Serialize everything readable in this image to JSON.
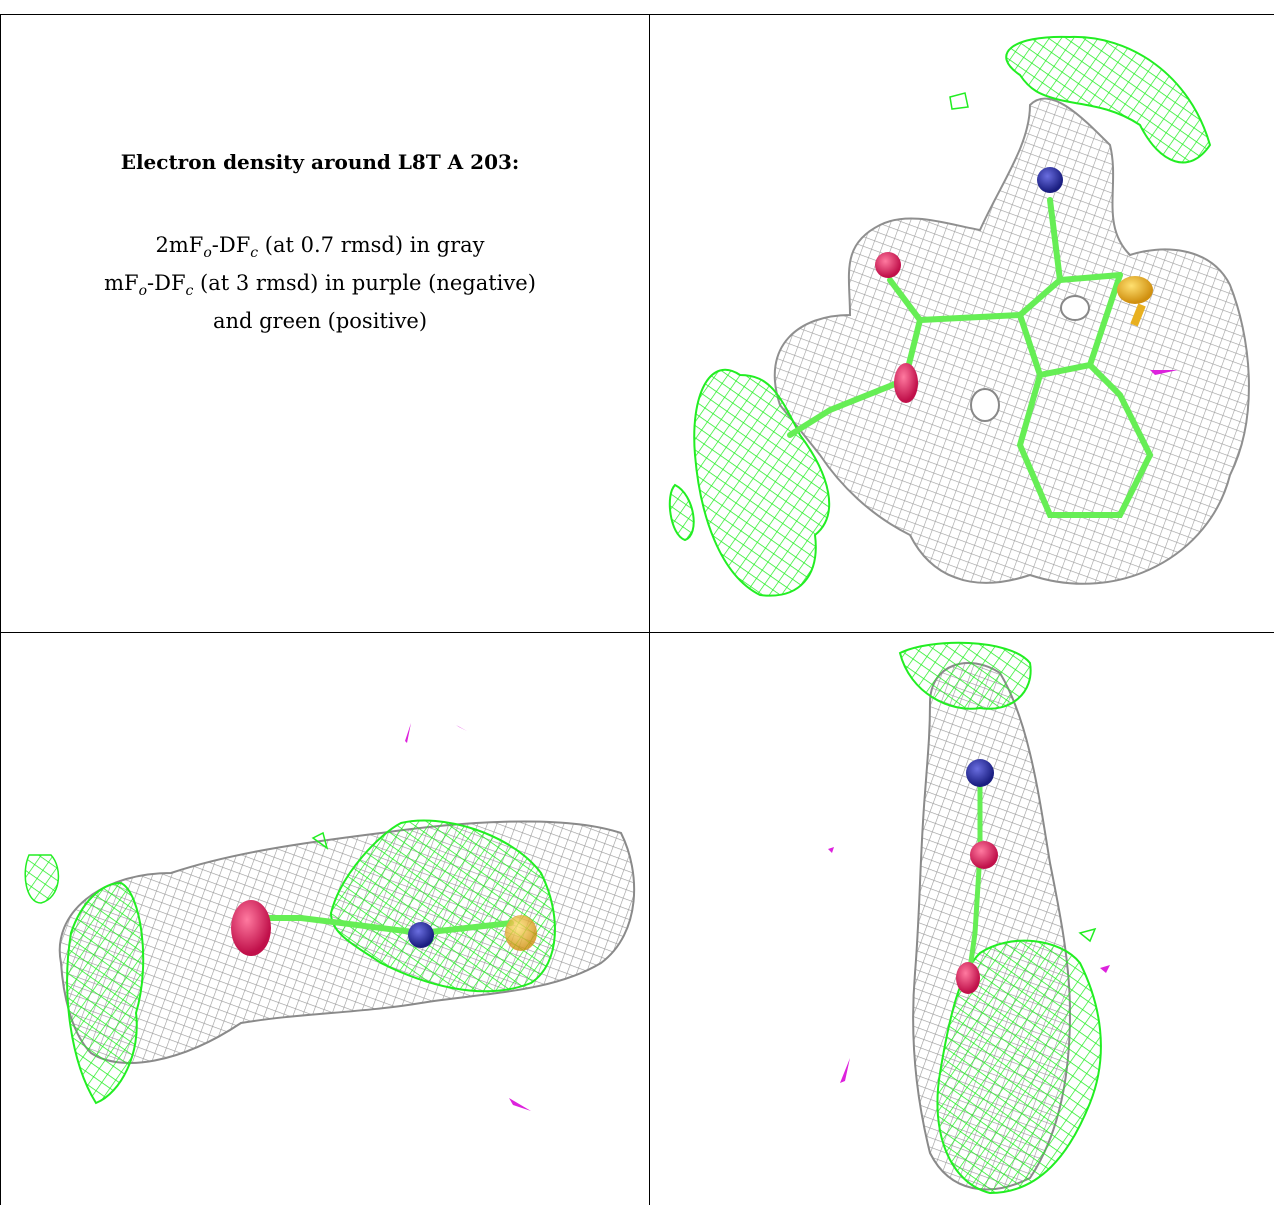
{
  "caption": {
    "title": "Electron density around L8T A 203:",
    "line1_prefix": "2mF",
    "line1_sub_o": "o",
    "line1_mid": "-DF",
    "line1_sub_c": "c",
    "line1_suffix": " (at 0.7 rmsd) in gray",
    "line2_prefix": "mF",
    "line2_sub_o": "o",
    "line2_mid": "-DF",
    "line2_sub_c": "c",
    "line2_suffix": " (at 3 rmsd) in purple (negative)",
    "line3": "and green (positive)"
  },
  "colors": {
    "gray_mesh": "#9a9a9a",
    "green_mesh": "#22ee22",
    "purple_mesh": "#dd22dd",
    "oxygen": "#e8205a",
    "nitrogen": "#2b2fa0",
    "sulfur": "#e8b020",
    "bond": "#66ee55"
  },
  "views": [
    {
      "name": "top-right-view",
      "icon": "density-map-front"
    },
    {
      "name": "bottom-left-view",
      "icon": "density-map-side"
    },
    {
      "name": "bottom-right-view",
      "icon": "density-map-edge"
    }
  ]
}
